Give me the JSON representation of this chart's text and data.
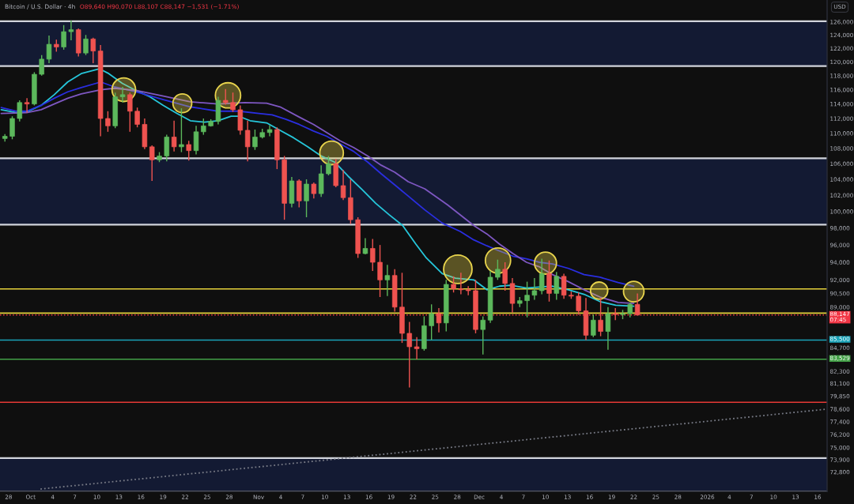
{
  "chart_data": {
    "type": "candlestick",
    "title": "Bitcoin / U.S. Dollar · 4h",
    "subtitle": "O89,640 H90,070 L88,107 C88,147 −1,531 (−1.71%)",
    "ylabel": "USD",
    "log": "y",
    "xlim": [
      "2025-09-26T20:00",
      "2026-01-17T07:00"
    ],
    "ylim": [
      71100,
      129400
    ],
    "xticks": [
      {
        "value": "2025-09-28",
        "label": "28"
      },
      {
        "value": "2025-10-01",
        "label": "Oct"
      },
      {
        "value": "2025-10-04",
        "label": "4"
      },
      {
        "value": "2025-10-07",
        "label": "7"
      },
      {
        "value": "2025-10-10",
        "label": "10"
      },
      {
        "value": "2025-10-13",
        "label": "13"
      },
      {
        "value": "2025-10-16",
        "label": "16"
      },
      {
        "value": "2025-10-19",
        "label": "19"
      },
      {
        "value": "2025-10-22",
        "label": "22"
      },
      {
        "value": "2025-10-25",
        "label": "25"
      },
      {
        "value": "2025-10-28",
        "label": "28"
      },
      {
        "value": "2025-11-01",
        "label": "Nov"
      },
      {
        "value": "2025-11-04",
        "label": "4"
      },
      {
        "value": "2025-11-07",
        "label": "7"
      },
      {
        "value": "2025-11-10",
        "label": "10"
      },
      {
        "value": "2025-11-13",
        "label": "13"
      },
      {
        "value": "2025-11-16",
        "label": "16"
      },
      {
        "value": "2025-11-19",
        "label": "19"
      },
      {
        "value": "2025-11-22",
        "label": "22"
      },
      {
        "value": "2025-11-25",
        "label": "25"
      },
      {
        "value": "2025-11-28",
        "label": "28"
      },
      {
        "value": "2025-12-01",
        "label": "Dec"
      },
      {
        "value": "2025-12-04",
        "label": "4"
      },
      {
        "value": "2025-12-07",
        "label": "7"
      },
      {
        "value": "2025-12-10",
        "label": "10"
      },
      {
        "value": "2025-12-13",
        "label": "13"
      },
      {
        "value": "2025-12-16",
        "label": "16"
      },
      {
        "value": "2025-12-19",
        "label": "19"
      },
      {
        "value": "2025-12-22",
        "label": "22"
      },
      {
        "value": "2025-12-25",
        "label": "25"
      },
      {
        "value": "2025-12-28",
        "label": "28"
      },
      {
        "value": "2026-01-01",
        "label": "2026"
      },
      {
        "value": "2026-01-04",
        "label": "4"
      },
      {
        "value": "2026-01-07",
        "label": "7"
      },
      {
        "value": "2026-01-10",
        "label": "10"
      },
      {
        "value": "2026-01-13",
        "label": "13"
      },
      {
        "value": "2026-01-16",
        "label": "16"
      }
    ],
    "yticks": [
      {
        "value": 126000,
        "label": "126,000"
      },
      {
        "value": 124000,
        "label": "124,000"
      },
      {
        "value": 122000,
        "label": "122,000"
      },
      {
        "value": 120000,
        "label": "120,000"
      },
      {
        "value": 118000,
        "label": "118,000"
      },
      {
        "value": 116000,
        "label": "116,000"
      },
      {
        "value": 114000,
        "label": "114,000"
      },
      {
        "value": 112000,
        "label": "112,000"
      },
      {
        "value": 110000,
        "label": "110,000"
      },
      {
        "value": 108000,
        "label": "108,000"
      },
      {
        "value": 106000,
        "label": "106,000"
      },
      {
        "value": 104000,
        "label": "104,000"
      },
      {
        "value": 102000,
        "label": "102,000"
      },
      {
        "value": 100000,
        "label": "100,000"
      },
      {
        "value": 98000,
        "label": "98,000"
      },
      {
        "value": 96000,
        "label": "96,000"
      },
      {
        "value": 94000,
        "label": "94,000"
      },
      {
        "value": 92000,
        "label": "92,000"
      },
      {
        "value": 90500,
        "label": "90,500"
      },
      {
        "value": 89000,
        "label": "89,000"
      },
      {
        "value": 84700,
        "label": "84,700"
      },
      {
        "value": 82300,
        "label": "82,300"
      },
      {
        "value": 81100,
        "label": "81,100"
      },
      {
        "value": 79850,
        "label": "79,850"
      },
      {
        "value": 78600,
        "label": "78,600"
      },
      {
        "value": 77400,
        "label": "77,400"
      },
      {
        "value": 76200,
        "label": "76,200"
      },
      {
        "value": 75000,
        "label": "75,000"
      },
      {
        "value": 73900,
        "label": "73,900"
      },
      {
        "value": 72800,
        "label": "72,800"
      }
    ],
    "x": [
      "2025-09-27T12:00",
      "2025-09-28T12:00",
      "2025-09-29T12:00",
      "2025-09-30T12:00",
      "2025-10-01T12:00",
      "2025-10-02T12:00",
      "2025-10-03T12:00",
      "2025-10-04T12:00",
      "2025-10-05T12:00",
      "2025-10-06T12:00",
      "2025-10-07T12:00",
      "2025-10-08T12:00",
      "2025-10-09T12:00",
      "2025-10-10T12:00",
      "2025-10-11T12:00",
      "2025-10-12T12:00",
      "2025-10-13T12:00",
      "2025-10-14T12:00",
      "2025-10-15T12:00",
      "2025-10-16T12:00",
      "2025-10-17T12:00",
      "2025-10-18T12:00",
      "2025-10-19T12:00",
      "2025-10-20T12:00",
      "2025-10-21T12:00",
      "2025-10-22T12:00",
      "2025-10-23T12:00",
      "2025-10-24T12:00",
      "2025-10-25T12:00",
      "2025-10-26T12:00",
      "2025-10-27T12:00",
      "2025-10-28T12:00",
      "2025-10-29T12:00",
      "2025-10-30T12:00",
      "2025-10-31T12:00",
      "2025-11-01T12:00",
      "2025-11-02T12:00",
      "2025-11-03T12:00",
      "2025-11-04T12:00",
      "2025-11-05T12:00",
      "2025-11-06T12:00",
      "2025-11-07T12:00",
      "2025-11-08T12:00",
      "2025-11-09T12:00",
      "2025-11-10T12:00",
      "2025-11-11T12:00",
      "2025-11-12T12:00",
      "2025-11-13T12:00",
      "2025-11-14T12:00",
      "2025-11-15T12:00",
      "2025-11-16T12:00",
      "2025-11-17T12:00",
      "2025-11-18T12:00",
      "2025-11-19T12:00",
      "2025-11-20T12:00",
      "2025-11-21T12:00",
      "2025-11-22T12:00",
      "2025-11-23T12:00",
      "2025-11-24T12:00",
      "2025-11-25T12:00",
      "2025-11-26T12:00",
      "2025-11-27T12:00",
      "2025-11-28T12:00",
      "2025-11-29T12:00",
      "2025-11-30T12:00",
      "2025-12-01T12:00",
      "2025-12-02T12:00",
      "2025-12-03T12:00",
      "2025-12-04T12:00",
      "2025-12-05T12:00",
      "2025-12-06T12:00",
      "2025-12-07T12:00",
      "2025-12-08T12:00",
      "2025-12-09T12:00",
      "2025-12-10T12:00",
      "2025-12-11T12:00",
      "2025-12-12T12:00",
      "2025-12-13T12:00",
      "2025-12-14T12:00",
      "2025-12-15T12:00",
      "2025-12-16T12:00",
      "2025-12-17T12:00",
      "2025-12-18T12:00",
      "2025-12-19T12:00",
      "2025-12-20T12:00",
      "2025-12-21T12:00",
      "2025-12-22T12:00"
    ],
    "ohlc": [
      [
        109300,
        109900,
        108900,
        109600
      ],
      [
        109600,
        112300,
        109200,
        112000
      ],
      [
        112000,
        114500,
        111600,
        114200
      ],
      [
        114200,
        114800,
        112800,
        114000
      ],
      [
        114000,
        118500,
        113800,
        118200
      ],
      [
        118200,
        121000,
        118000,
        120400
      ],
      [
        120400,
        123900,
        119800,
        122600
      ],
      [
        122600,
        123300,
        121500,
        122200
      ],
      [
        122200,
        125500,
        121800,
        124500
      ],
      [
        124500,
        126200,
        123200,
        124800
      ],
      [
        124800,
        125000,
        120800,
        121300
      ],
      [
        121300,
        124000,
        121000,
        123400
      ],
      [
        123400,
        123600,
        119800,
        121600
      ],
      [
        121600,
        122500,
        109600,
        112000
      ],
      [
        112000,
        113000,
        110200,
        111000
      ],
      [
        111000,
        115600,
        110700,
        115000
      ],
      [
        115000,
        116400,
        114200,
        115300
      ],
      [
        115300,
        115600,
        110200,
        113000
      ],
      [
        113000,
        113500,
        110800,
        111200
      ],
      [
        111200,
        112000,
        107900,
        108200
      ],
      [
        108200,
        108400,
        103800,
        106500
      ],
      [
        106500,
        107500,
        106200,
        107000
      ],
      [
        107000,
        109800,
        106300,
        109500
      ],
      [
        109500,
        111700,
        107600,
        108200
      ],
      [
        108200,
        113400,
        107500,
        108500
      ],
      [
        108500,
        109000,
        106400,
        107700
      ],
      [
        107700,
        111000,
        107200,
        110200
      ],
      [
        110200,
        112000,
        109800,
        111000
      ],
      [
        111000,
        111900,
        110900,
        111600
      ],
      [
        111600,
        115000,
        111200,
        114500
      ],
      [
        114500,
        116100,
        113900,
        114200
      ],
      [
        114200,
        115600,
        112900,
        113200
      ],
      [
        113200,
        113800,
        109800,
        110400
      ],
      [
        110400,
        111700,
        106300,
        108200
      ],
      [
        108200,
        110500,
        107800,
        109500
      ],
      [
        109500,
        110600,
        109300,
        110100
      ],
      [
        110100,
        111100,
        109600,
        110500
      ],
      [
        110500,
        110800,
        105300,
        106500
      ],
      [
        106500,
        107000,
        99000,
        101000
      ],
      [
        101000,
        104300,
        100500,
        103800
      ],
      [
        103800,
        104000,
        100500,
        101300
      ],
      [
        101300,
        104000,
        99300,
        103400
      ],
      [
        103400,
        103600,
        101600,
        102200
      ],
      [
        102200,
        105800,
        101800,
        104700
      ],
      [
        104700,
        107000,
        104500,
        106000
      ],
      [
        106000,
        106600,
        103000,
        103200
      ],
      [
        103200,
        105200,
        101400,
        101700
      ],
      [
        101700,
        104000,
        98500,
        99000
      ],
      [
        99000,
        99300,
        94500,
        95000
      ],
      [
        95000,
        96800,
        94900,
        95600
      ],
      [
        95600,
        96700,
        93000,
        94000
      ],
      [
        94000,
        96000,
        90100,
        92000
      ],
      [
        92000,
        93700,
        90200,
        92500
      ],
      [
        92500,
        93200,
        88500,
        89000
      ],
      [
        89000,
        92800,
        85200,
        86200
      ],
      [
        86200,
        87400,
        80700,
        84800
      ],
      [
        84800,
        85800,
        83500,
        84600
      ],
      [
        84600,
        88000,
        84400,
        87000
      ],
      [
        87000,
        89300,
        85500,
        88300
      ],
      [
        88300,
        88900,
        86300,
        87300
      ],
      [
        87300,
        92000,
        86400,
        91500
      ],
      [
        91500,
        92400,
        90600,
        91000
      ],
      [
        91000,
        92800,
        90400,
        90900
      ],
      [
        90900,
        91300,
        90300,
        90800
      ],
      [
        90800,
        92000,
        86200,
        86600
      ],
      [
        86600,
        88000,
        84000,
        87600
      ],
      [
        87600,
        93000,
        87300,
        92300
      ],
      [
        92300,
        94300,
        92000,
        93200
      ],
      [
        93200,
        94000,
        90800,
        91600
      ],
      [
        91600,
        92200,
        88400,
        89400
      ],
      [
        89400,
        90100,
        89000,
        89700
      ],
      [
        89700,
        91800,
        87900,
        90300
      ],
      [
        90300,
        92200,
        89800,
        90800
      ],
      [
        90800,
        94400,
        90400,
        92700
      ],
      [
        92700,
        94200,
        89600,
        90500
      ],
      [
        90500,
        92900,
        89800,
        92400
      ],
      [
        92400,
        92700,
        89900,
        90300
      ],
      [
        90300,
        90700,
        89900,
        90200
      ],
      [
        90200,
        90600,
        88200,
        88600
      ],
      [
        88600,
        90000,
        85500,
        86000
      ],
      [
        86000,
        88200,
        85800,
        87600
      ],
      [
        87600,
        90000,
        85900,
        86400
      ],
      [
        86400,
        89000,
        84500,
        88300
      ],
      [
        88300,
        88900,
        87600,
        88200
      ],
      [
        88200,
        88700,
        87700,
        88300
      ],
      [
        88300,
        89500,
        87900,
        89300
      ],
      [
        89300,
        90500,
        88100,
        88147
      ]
    ],
    "colors": [
      "#5cb85c",
      "#5cb85c",
      "#5cb85c",
      "#ef5350",
      "#5cb85c",
      "#5cb85c",
      "#5cb85c",
      "#ef5350",
      "#5cb85c",
      "#5cb85c",
      "#ef5350",
      "#5cb85c",
      "#ef5350",
      "#ef5350",
      "#ef5350",
      "#5cb85c",
      "#5cb85c",
      "#ef5350",
      "#ef5350",
      "#ef5350",
      "#ef5350",
      "#5cb85c",
      "#5cb85c",
      "#ef5350",
      "#5cb85c",
      "#ef5350",
      "#5cb85c",
      "#5cb85c",
      "#5cb85c",
      "#5cb85c",
      "#ef5350",
      "#ef5350",
      "#ef5350",
      "#ef5350",
      "#5cb85c",
      "#5cb85c",
      "#5cb85c",
      "#ef5350",
      "#ef5350",
      "#5cb85c",
      "#ef5350",
      "#5cb85c",
      "#ef5350",
      "#5cb85c",
      "#5cb85c",
      "#ef5350",
      "#ef5350",
      "#ef5350",
      "#ef5350",
      "#5cb85c",
      "#ef5350",
      "#ef5350",
      "#5cb85c",
      "#ef5350",
      "#ef5350",
      "#ef5350",
      "#ef5350",
      "#5cb85c",
      "#5cb85c",
      "#ef5350",
      "#5cb85c",
      "#ef5350",
      "#ef5350",
      "#ef5350",
      "#ef5350",
      "#5cb85c",
      "#5cb85c",
      "#5cb85c",
      "#ef5350",
      "#ef5350",
      "#5cb85c",
      "#5cb85c",
      "#5cb85c",
      "#5cb85c",
      "#ef5350",
      "#5cb85c",
      "#ef5350",
      "#ef5350",
      "#ef5350",
      "#ef5350",
      "#5cb85c",
      "#ef5350",
      "#5cb85c",
      "#ef5350",
      "#5cb85c",
      "#5cb85c",
      "#ef5350"
    ],
    "series": [
      {
        "type": "line",
        "color": "#26c6da",
        "x": [
          "2025-09-27T00:00",
          "2025-09-29T02:00",
          "2025-09-30T11:00",
          "2025-10-02T10:00",
          "2025-10-04T05:00",
          "2025-10-06T01:00",
          "2025-10-07T21:00",
          "2025-10-10T08:00",
          "2025-10-11T15:00",
          "2025-10-13T11:00",
          "2025-10-15T07:00",
          "2025-10-17T05:00",
          "2025-10-19T01:00",
          "2025-10-20T21:00",
          "2025-10-22T17:00",
          "2025-10-24T15:00",
          "2025-10-26T11:00",
          "2025-10-28T06:00",
          "2025-10-29T08:00",
          "2025-10-30T20:00",
          "2025-11-02T02:00",
          "2025-11-03T22:00",
          "2025-11-05T18:00",
          "2025-11-07T16:00",
          "2025-11-09T12:00",
          "2025-11-11T08:00",
          "2025-11-13T04:00",
          "2025-11-15T02:00",
          "2025-11-16T22:00",
          "2025-11-18T18:00",
          "2025-11-20T14:00",
          "2025-11-22T09:00",
          "2025-11-23T19:00",
          "2025-11-25T23:00",
          "2025-11-27T18:00",
          "2025-11-30T06:00",
          "2025-12-02T01:00",
          "2025-12-03T18:00",
          "2025-12-05T07:00",
          "2025-12-07T10:00",
          "2025-12-09T03:00",
          "2025-12-10T23:00",
          "2025-12-13T03:00",
          "2025-12-15T06:00",
          "2025-12-17T10:00",
          "2025-12-19T13:00",
          "2025-12-22T00:00"
        ],
        "values": [
          113200,
          112800,
          112900,
          113800,
          115300,
          117100,
          118300,
          119000,
          118300,
          116900,
          115900,
          115000,
          113800,
          112700,
          111700,
          111500,
          111700,
          112300,
          112300,
          111700,
          111400,
          110400,
          109400,
          108200,
          107000,
          106200,
          104400,
          102700,
          101000,
          99600,
          98300,
          96100,
          94500,
          92700,
          92200,
          92000,
          90900,
          91300,
          91400,
          91100,
          91200,
          91300,
          90900,
          90400,
          89600,
          89200,
          89100
        ]
      },
      {
        "type": "line",
        "color": "#2a2ee0",
        "x": [
          "2025-09-27T00:00",
          "2025-09-29T02:00",
          "2025-09-30T11:00",
          "2025-10-02T10:00",
          "2025-10-04T05:00",
          "2025-10-06T01:00",
          "2025-10-07T21:00",
          "2025-10-10T13:00",
          "2025-10-12T09:00",
          "2025-10-15T07:00",
          "2025-10-19T01:00",
          "2025-10-22T17:00",
          "2025-10-26T11:00",
          "2025-10-29T08:00",
          "2025-11-01T01:00",
          "2025-11-02T20:00",
          "2025-11-04T16:00",
          "2025-11-06T12:00",
          "2025-11-08T11:00",
          "2025-11-10T06:00",
          "2025-11-12T02:00",
          "2025-11-13T22:00",
          "2025-11-15T20:00",
          "2025-11-17T16:00",
          "2025-11-19T12:00",
          "2025-11-21T08:00",
          "2025-11-23T14:00",
          "2025-11-25T23:00",
          "2025-11-28T10:00",
          "2025-11-30T06:00",
          "2025-12-02T01:00",
          "2025-12-03T18:00",
          "2025-12-05T14:00",
          "2025-12-07T10:00",
          "2025-12-09T03:00",
          "2025-12-10T23:00",
          "2025-12-13T03:00",
          "2025-12-15T06:00",
          "2025-12-17T10:00",
          "2025-12-19T21:00",
          "2025-12-22T00:00"
        ],
        "values": [
          113500,
          113000,
          113000,
          113800,
          114800,
          115700,
          116300,
          117100,
          116400,
          115700,
          114600,
          113600,
          113000,
          113000,
          112700,
          112500,
          111900,
          111200,
          110300,
          109600,
          108600,
          107600,
          106200,
          104700,
          103300,
          101900,
          100200,
          98600,
          97600,
          96600,
          95900,
          95300,
          94700,
          94400,
          94000,
          93800,
          93300,
          92600,
          92300,
          91700,
          91300
        ]
      },
      {
        "type": "line",
        "color": "#7e57c2",
        "x": [
          "2025-09-27T00:00",
          "2025-09-30T11:00",
          "2025-10-02T10:00",
          "2025-10-04T05:00",
          "2025-10-06T01:00",
          "2025-10-07T21:00",
          "2025-10-10T13:00",
          "2025-10-12T09:00",
          "2025-10-15T07:00",
          "2025-10-19T01:00",
          "2025-10-22T17:00",
          "2025-10-26T11:00",
          "2025-10-30T02:00",
          "2025-11-02T02:00",
          "2025-11-03T22:00",
          "2025-11-06T12:00",
          "2025-11-08T11:00",
          "2025-11-10T06:00",
          "2025-11-12T02:00",
          "2025-11-13T22:00",
          "2025-11-15T20:00",
          "2025-11-17T16:00",
          "2025-11-19T12:00",
          "2025-11-21T08:00",
          "2025-11-23T14:00",
          "2025-11-26T17:00",
          "2025-11-30T06:00",
          "2025-12-02T01:00",
          "2025-12-03T18:00",
          "2025-12-05T14:00",
          "2025-12-07T10:00",
          "2025-12-09T03:00",
          "2025-12-10T23:00",
          "2025-12-13T03:00",
          "2025-12-15T06:00",
          "2025-12-17T10:00",
          "2025-12-19T21:00",
          "2025-12-22T00:00"
        ],
        "values": [
          112700,
          112800,
          113200,
          114000,
          114800,
          115400,
          116000,
          116200,
          115900,
          115100,
          114300,
          114000,
          114200,
          114100,
          113600,
          112200,
          111200,
          110100,
          109000,
          108100,
          107000,
          105800,
          104900,
          103700,
          102800,
          100800,
          98300,
          97300,
          96100,
          95000,
          94000,
          93500,
          92600,
          91800,
          90900,
          90100,
          89500,
          89400
        ]
      },
      {
        "type": "line",
        "color": "#787b86",
        "line_style": "dotted",
        "x": [
          "2025-10-02T08:00",
          "2026-01-17T07:00"
        ],
        "values": [
          71300,
          78600
        ]
      },
      {
        "type": "bubble",
        "color": "#e8d44d",
        "x": [
          "2025-10-13T16:00",
          "2025-10-21T15:00",
          "2025-10-27T20:00",
          "2025-11-10T22:00",
          "2025-11-28T02:00",
          "2025-12-03T13:00",
          "2025-12-10T00:00",
          "2025-12-17T07:00",
          "2025-12-22T00:00"
        ],
        "values": [
          116000,
          114100,
          115200,
          107400,
          93200,
          94200,
          93900,
          90800,
          90700
        ],
        "sizes": [
          0.69,
          0.44,
          0.79,
          0.69,
          1,
          0.79,
          0.6,
          0.37,
          0.52
        ]
      }
    ],
    "bands": [
      {
        "axis": "y",
        "from": 119400,
        "to": 126100,
        "color": "#131a33"
      },
      {
        "axis": "y",
        "from": 98400,
        "to": 106700,
        "color": "#131a33"
      },
      {
        "axis": "y",
        "from": 71100,
        "to": 74050,
        "color": "#131a33"
      }
    ],
    "ref_lines": [
      {
        "axis": "y",
        "value": 91000,
        "color": "#e6d23a"
      },
      {
        "axis": "y",
        "value": 88350,
        "color": "#e6d23a"
      },
      {
        "axis": "y",
        "value": 88147,
        "label": "88,147\n07:45",
        "color": "#f23645",
        "line_style": "dotted"
      },
      {
        "axis": "y",
        "value": 85500,
        "label": "85,500",
        "color": "#1aa3b8"
      },
      {
        "axis": "y",
        "value": 83529,
        "label": "83,529",
        "color": "#43a047"
      },
      {
        "axis": "y",
        "value": 79250,
        "color": "#e53935"
      }
    ]
  }
}
